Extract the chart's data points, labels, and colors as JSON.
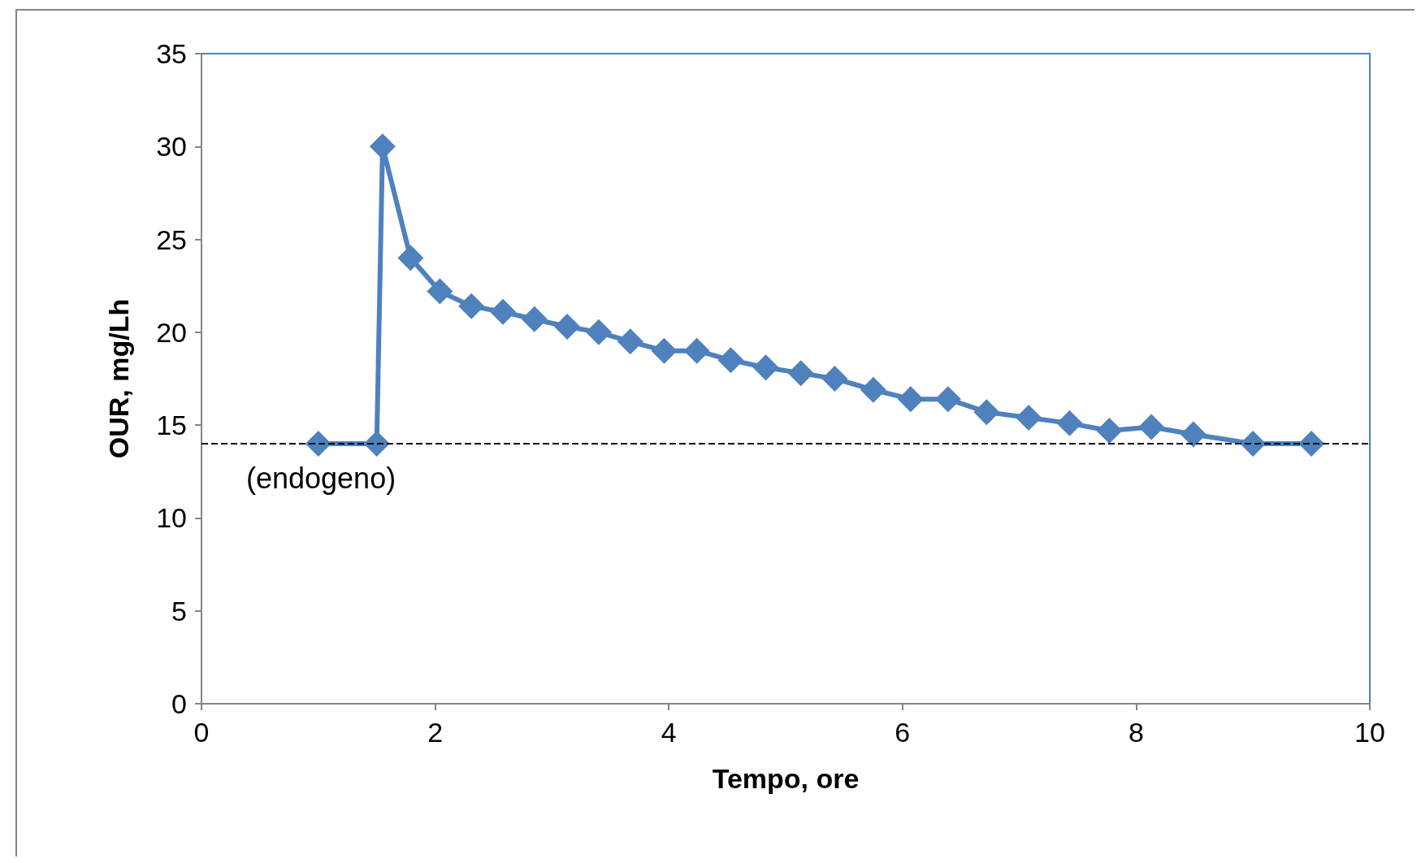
{
  "chart_data": {
    "type": "line",
    "xlabel": "Tempo, ore",
    "ylabel": "OUR, mg/Lh",
    "x": [
      1.0,
      1.5,
      1.55,
      1.79,
      2.04,
      2.31,
      2.58,
      2.85,
      3.13,
      3.4,
      3.67,
      3.96,
      4.24,
      4.53,
      4.83,
      5.13,
      5.42,
      5.75,
      6.07,
      6.39,
      6.72,
      7.08,
      7.43,
      7.77,
      8.13,
      8.49,
      9.0,
      9.5
    ],
    "series": [
      {
        "color": "#4f81bd",
        "values": [
          14,
          14,
          30,
          24,
          22.2,
          21.4,
          21.1,
          20.7,
          20.3,
          20.0,
          19.5,
          19.0,
          19.0,
          18.5,
          18.1,
          17.8,
          17.5,
          16.9,
          16.4,
          16.4,
          15.7,
          15.4,
          15.1,
          14.7,
          14.9,
          14.5,
          14,
          14
        ]
      }
    ],
    "xlim": [
      0,
      10
    ],
    "xticks": [
      0,
      2,
      4,
      6,
      8,
      10
    ],
    "ylim": [
      0,
      35
    ],
    "yticks": [
      0,
      5,
      10,
      15,
      20,
      25,
      30,
      35
    ],
    "ref_lines": [
      {
        "axis": "y",
        "value": 14,
        "label": "(endogeno)",
        "color": "#000000",
        "line_style": "dashed"
      }
    ],
    "grid": false,
    "marker": "diamond",
    "line_style": "solid"
  }
}
